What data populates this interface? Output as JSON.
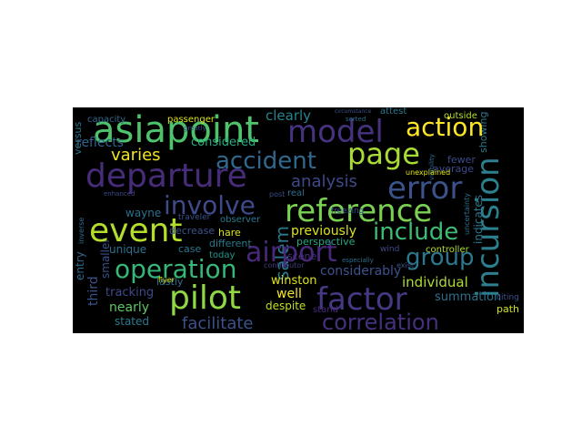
{
  "words": [
    {
      "text": "incursion",
      "color": "#2c7f8e"
    },
    {
      "text": "asiapoint",
      "color": "#4ec36b"
    },
    {
      "text": "model",
      "color": "#46327e"
    },
    {
      "text": "departure",
      "color": "#472c7a"
    },
    {
      "text": "page",
      "color": "#a8db34"
    },
    {
      "text": "error",
      "color": "#3b528b"
    },
    {
      "text": "reference",
      "color": "#7ad151"
    },
    {
      "text": "accident",
      "color": "#31688e"
    },
    {
      "text": "event",
      "color": "#b5de2b"
    },
    {
      "text": "involve",
      "color": "#3e4a89"
    },
    {
      "text": "action",
      "color": "#fde725"
    },
    {
      "text": "airport",
      "color": "#482878"
    },
    {
      "text": "operation",
      "color": "#35b779"
    },
    {
      "text": "group",
      "color": "#2a788e"
    },
    {
      "text": "include",
      "color": "#3fbc73"
    },
    {
      "text": "factor",
      "color": "#443983"
    },
    {
      "text": "pilot",
      "color": "#8fd744"
    },
    {
      "text": "correlation",
      "color": "#46307e"
    },
    {
      "text": "facilitate",
      "color": "#3b528b"
    },
    {
      "text": "varies",
      "color": "#f1e51d"
    },
    {
      "text": "analysis",
      "color": "#3e4989"
    },
    {
      "text": "salem",
      "color": "#2a788e"
    },
    {
      "text": "clearly",
      "color": "#25848e"
    },
    {
      "text": "considered",
      "color": "#26ad81"
    },
    {
      "text": "reflects",
      "color": "#33638d"
    },
    {
      "text": "previously",
      "color": "#dde318"
    },
    {
      "text": "considerably",
      "color": "#3b528b"
    },
    {
      "text": "individual",
      "color": "#addc30"
    },
    {
      "text": "summation",
      "color": "#2d708e"
    },
    {
      "text": "winston",
      "color": "#dfe318"
    },
    {
      "text": "tracking",
      "color": "#3e4a89"
    },
    {
      "text": "well",
      "color": "#f8e621"
    },
    {
      "text": "nearly",
      "color": "#5ec962"
    },
    {
      "text": "stated",
      "color": "#287c8e"
    },
    {
      "text": "despite",
      "color": "#bddf26"
    },
    {
      "text": "lastly",
      "color": "#2e6e8e"
    },
    {
      "text": "third",
      "color": "#3b528b"
    },
    {
      "text": "entry",
      "color": "#31688e"
    },
    {
      "text": "smaller",
      "color": "#3b528b"
    },
    {
      "text": "wayne",
      "color": "#2d708e"
    },
    {
      "text": "unique",
      "color": "#2c728e"
    },
    {
      "text": "case",
      "color": "#2a788e"
    },
    {
      "text": "today",
      "color": "#1f988b"
    },
    {
      "text": "hare",
      "color": "#dde318"
    },
    {
      "text": "different",
      "color": "#2a788e"
    },
    {
      "text": "decrease",
      "color": "#3b528b"
    },
    {
      "text": "observer",
      "color": "#2a788e"
    },
    {
      "text": "perspective",
      "color": "#22a884"
    },
    {
      "text": "fewer",
      "color": "#3e4a89"
    },
    {
      "text": "average",
      "color": "#3e4a89"
    },
    {
      "text": "controller",
      "color": "#addc30"
    },
    {
      "text": "path",
      "color": "#d2e21b"
    },
    {
      "text": "showing",
      "color": "#2a788e"
    },
    {
      "text": "outside",
      "color": "#b5de2b"
    },
    {
      "text": "attest",
      "color": "#2a788e"
    },
    {
      "text": "circumstance",
      "color": "#3b528b"
    },
    {
      "text": "capacity",
      "color": "#31688e"
    },
    {
      "text": "passenger",
      "color": "#d8e219"
    },
    {
      "text": "versus",
      "color": "#2a788e"
    },
    {
      "text": "traveler",
      "color": "#3b528b"
    },
    {
      "text": "scene",
      "color": "#46307e"
    },
    {
      "text": "stand",
      "color": "#482878"
    },
    {
      "text": "unexplained",
      "color": "#e2e418"
    },
    {
      "text": "indicates",
      "color": "#2a788e"
    },
    {
      "text": "freezing",
      "color": "#3b528b"
    },
    {
      "text": "flyer",
      "color": "#d8e219"
    },
    {
      "text": "citing",
      "color": "#3b528b"
    },
    {
      "text": "wind",
      "color": "#3e4a89"
    },
    {
      "text": "contributor",
      "color": "#433e85"
    },
    {
      "text": "real",
      "color": "#2e6e8e"
    },
    {
      "text": "exist",
      "color": "#3b528b"
    },
    {
      "text": "greatly",
      "color": "#3e4a89"
    },
    {
      "text": "sorted",
      "color": "#2e6e8e"
    },
    {
      "text": "visibility",
      "color": "#2e6e8e"
    },
    {
      "text": "inverse",
      "color": "#2e6e8e"
    },
    {
      "text": "enhanced",
      "color": "#3e4a89"
    },
    {
      "text": "uncertainty",
      "color": "#2e6e8e"
    },
    {
      "text": "post",
      "color": "#3e4a89"
    },
    {
      "text": "especially",
      "color": "#2e6e8e"
    }
  ]
}
